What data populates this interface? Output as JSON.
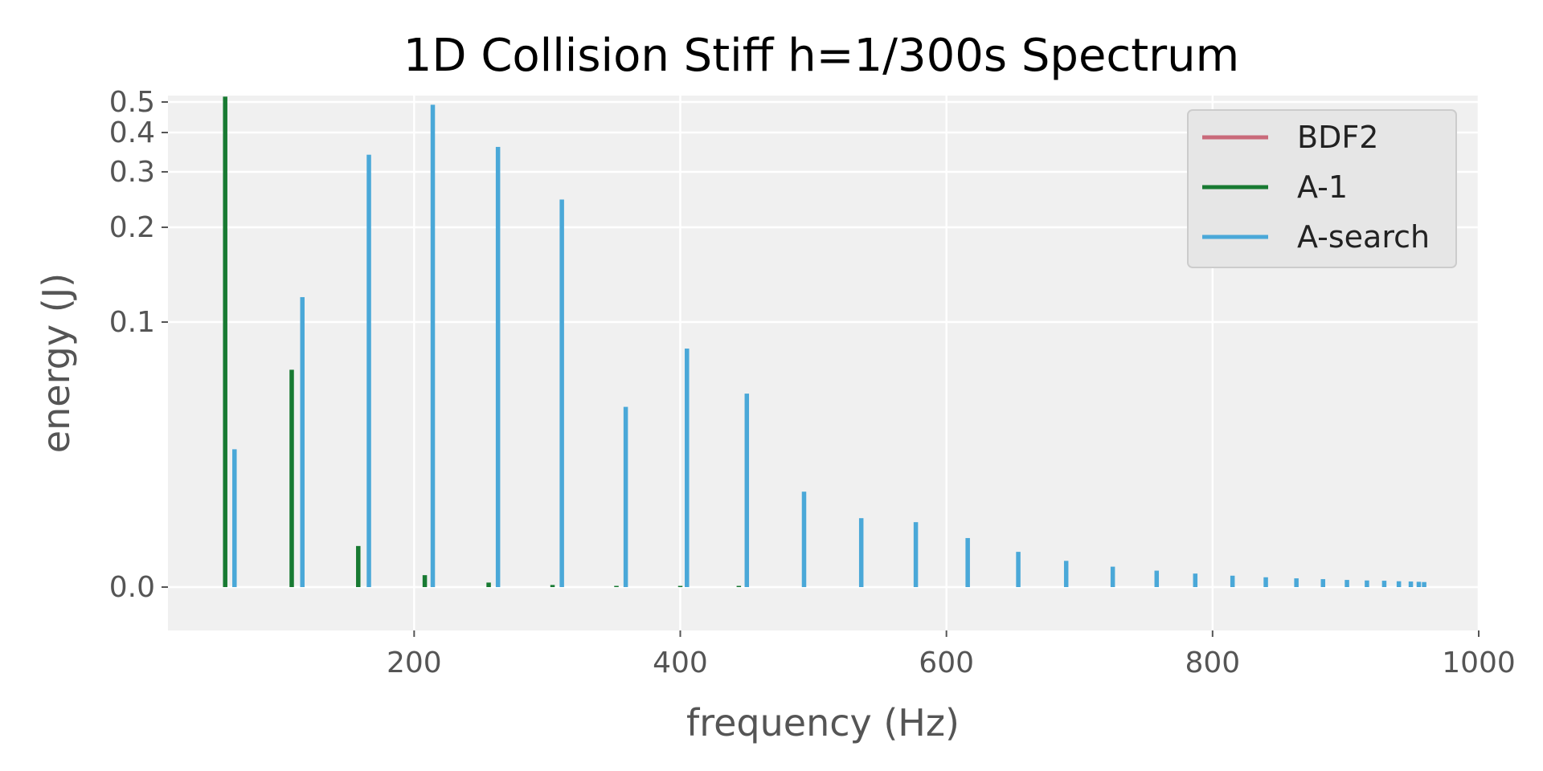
{
  "chart_data": {
    "type": "bar",
    "title": "1D Collision Stiff h=1/300s Spectrum",
    "xlabel": "frequency (Hz)",
    "ylabel": "energy (J)",
    "xlim": [
      15,
      1000
    ],
    "ylim": [
      -0.015,
      0.52
    ],
    "y_scale": "symlog-like (linear near zero, log above)",
    "grid": true,
    "legend": "top-right",
    "x_ticks": [
      200,
      400,
      600,
      800,
      1000
    ],
    "x_tick_labels": [
      "200",
      "400",
      "600",
      "800",
      "1000"
    ],
    "y_ticks": [
      0.0,
      0.1,
      0.2,
      0.3,
      0.4,
      0.5
    ],
    "y_tick_labels": [
      "0.0",
      "0.1",
      "0.2",
      "0.3",
      "0.4",
      "0.5"
    ],
    "series": [
      {
        "name": "BDF2",
        "color": "#c96a7a",
        "points": []
      },
      {
        "name": "A-1",
        "color": "#187a32",
        "points": [
          [
            58,
            0.52
          ],
          [
            108,
            0.082
          ],
          [
            158,
            0.0155
          ],
          [
            208,
            0.0045
          ],
          [
            256,
            0.0017
          ],
          [
            304,
            0.0008
          ],
          [
            352,
            0.0004
          ],
          [
            400,
            0.0002
          ],
          [
            444,
            0.0001
          ]
        ]
      },
      {
        "name": "A-search",
        "color": "#4aa8d8",
        "points": [
          [
            65,
            0.052
          ],
          [
            116,
            0.12
          ],
          [
            166,
            0.34
          ],
          [
            214,
            0.49
          ],
          [
            263,
            0.36
          ],
          [
            311,
            0.245
          ],
          [
            359,
            0.068
          ],
          [
            405,
            0.09
          ],
          [
            450,
            0.073
          ],
          [
            493,
            0.036
          ],
          [
            536,
            0.026
          ],
          [
            577,
            0.0245
          ],
          [
            616,
            0.0185
          ],
          [
            654,
            0.0133
          ],
          [
            690,
            0.0099
          ],
          [
            725,
            0.0077
          ],
          [
            758,
            0.0062
          ],
          [
            787,
            0.0051
          ],
          [
            815,
            0.0043
          ],
          [
            840,
            0.0037
          ],
          [
            863,
            0.0033
          ],
          [
            883,
            0.003
          ],
          [
            901,
            0.0027
          ],
          [
            916,
            0.0025
          ],
          [
            929,
            0.0024
          ],
          [
            940,
            0.0022
          ],
          [
            949,
            0.0021
          ],
          [
            955,
            0.002
          ],
          [
            959,
            0.0019
          ]
        ]
      }
    ]
  }
}
